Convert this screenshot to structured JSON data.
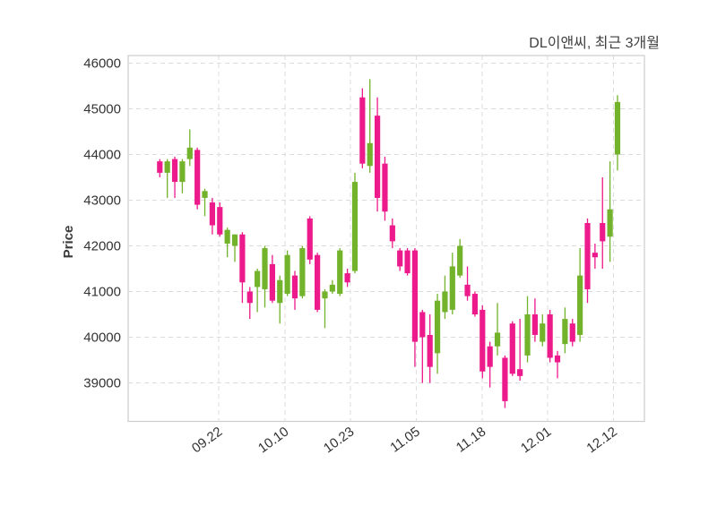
{
  "title": "DL이앤씨, 최근 3개월",
  "colors": {
    "up": "#73b32b",
    "down": "#ed1a8c",
    "grid": "#dcdcdc",
    "frame": "#cccccc",
    "tick_text": "#333333",
    "title_text": "#3f3f3f",
    "background": "#ffffff"
  },
  "chart_data": {
    "type": "candlestick",
    "title": "DL이앤씨, 최근 3개월",
    "xlabel": "",
    "ylabel": "Price",
    "grid": true,
    "ylim": [
      38200,
      46170
    ],
    "yticks": [
      39000,
      40000,
      41000,
      42000,
      43000,
      44000,
      45000,
      46000
    ],
    "xticks": [
      {
        "label": "09.22",
        "pos": 7.85
      },
      {
        "label": "10.10",
        "pos": 16.69
      },
      {
        "label": "10.23",
        "pos": 25.4
      },
      {
        "label": "11.05",
        "pos": 34.18
      },
      {
        "label": "11.18",
        "pos": 42.96
      },
      {
        "label": "12.01",
        "pos": 51.68
      },
      {
        "label": "12.12",
        "pos": 60.46
      }
    ],
    "ohlc_columns": [
      "open",
      "high",
      "low",
      "close"
    ],
    "candles": [
      [
        43850,
        43900,
        43500,
        43600
      ],
      [
        43600,
        43900,
        43050,
        43850
      ],
      [
        43900,
        43950,
        43050,
        43400
      ],
      [
        43400,
        43900,
        43150,
        43850
      ],
      [
        43900,
        44550,
        43750,
        44150
      ],
      [
        44100,
        44150,
        42800,
        42900
      ],
      [
        43050,
        43250,
        42650,
        43200
      ],
      [
        42950,
        43050,
        42250,
        42450
      ],
      [
        42850,
        42950,
        42200,
        42250
      ],
      [
        42050,
        42400,
        41750,
        42350
      ],
      [
        42000,
        42250,
        41650,
        42250
      ],
      [
        42250,
        42300,
        40750,
        41200
      ],
      [
        41000,
        41100,
        40400,
        40750
      ],
      [
        41100,
        41500,
        40550,
        41450
      ],
      [
        41050,
        42000,
        40650,
        41950
      ],
      [
        41600,
        41800,
        40750,
        40800
      ],
      [
        40750,
        41350,
        40300,
        41250
      ],
      [
        40950,
        41900,
        40900,
        41800
      ],
      [
        41350,
        41450,
        40600,
        40850
      ],
      [
        40900,
        42000,
        40850,
        41950
      ],
      [
        42600,
        42650,
        41600,
        41700
      ],
      [
        41800,
        41850,
        40550,
        40600
      ],
      [
        40850,
        41050,
        40200,
        41000
      ],
      [
        41000,
        41250,
        40950,
        41150
      ],
      [
        40950,
        41950,
        40900,
        41900
      ],
      [
        41400,
        41500,
        41100,
        41200
      ],
      [
        41450,
        43600,
        41400,
        43400
      ],
      [
        45250,
        45450,
        43700,
        43800
      ],
      [
        43750,
        45650,
        43600,
        44250
      ],
      [
        44850,
        45250,
        42750,
        43050
      ],
      [
        43800,
        43950,
        42550,
        42750
      ],
      [
        42450,
        42600,
        41950,
        42100
      ],
      [
        41900,
        41950,
        41450,
        41550
      ],
      [
        41900,
        41950,
        41350,
        41400
      ],
      [
        41900,
        41950,
        39350,
        39900
      ],
      [
        40550,
        40600,
        39000,
        40000
      ],
      [
        40050,
        40500,
        39000,
        39350
      ],
      [
        39650,
        40950,
        39200,
        40800
      ],
      [
        40550,
        41350,
        40400,
        41000
      ],
      [
        40600,
        41850,
        40500,
        41550
      ],
      [
        41350,
        42150,
        41300,
        42000
      ],
      [
        41150,
        41550,
        40800,
        40900
      ],
      [
        40950,
        41000,
        40450,
        40500
      ],
      [
        40600,
        40700,
        39100,
        39250
      ],
      [
        39800,
        39900,
        38900,
        39350
      ],
      [
        39800,
        40750,
        39600,
        40100
      ],
      [
        39550,
        39600,
        38450,
        38600
      ],
      [
        40300,
        40350,
        39150,
        39200
      ],
      [
        39300,
        40400,
        39050,
        39150
      ],
      [
        39600,
        40900,
        39450,
        40500
      ],
      [
        40500,
        40850,
        39900,
        40050
      ],
      [
        39900,
        40500,
        39800,
        40300
      ],
      [
        40500,
        40600,
        39450,
        39550
      ],
      [
        39600,
        39700,
        39100,
        39450
      ],
      [
        39850,
        40650,
        39650,
        40400
      ],
      [
        40300,
        40400,
        39800,
        39900
      ],
      [
        40050,
        41950,
        39900,
        41350
      ],
      [
        42500,
        42600,
        40750,
        41050
      ],
      [
        41850,
        42050,
        41500,
        41750
      ],
      [
        42500,
        43500,
        41500,
        42100
      ],
      [
        42200,
        43850,
        41650,
        42800
      ],
      [
        44000,
        45300,
        43650,
        45150
      ]
    ]
  }
}
